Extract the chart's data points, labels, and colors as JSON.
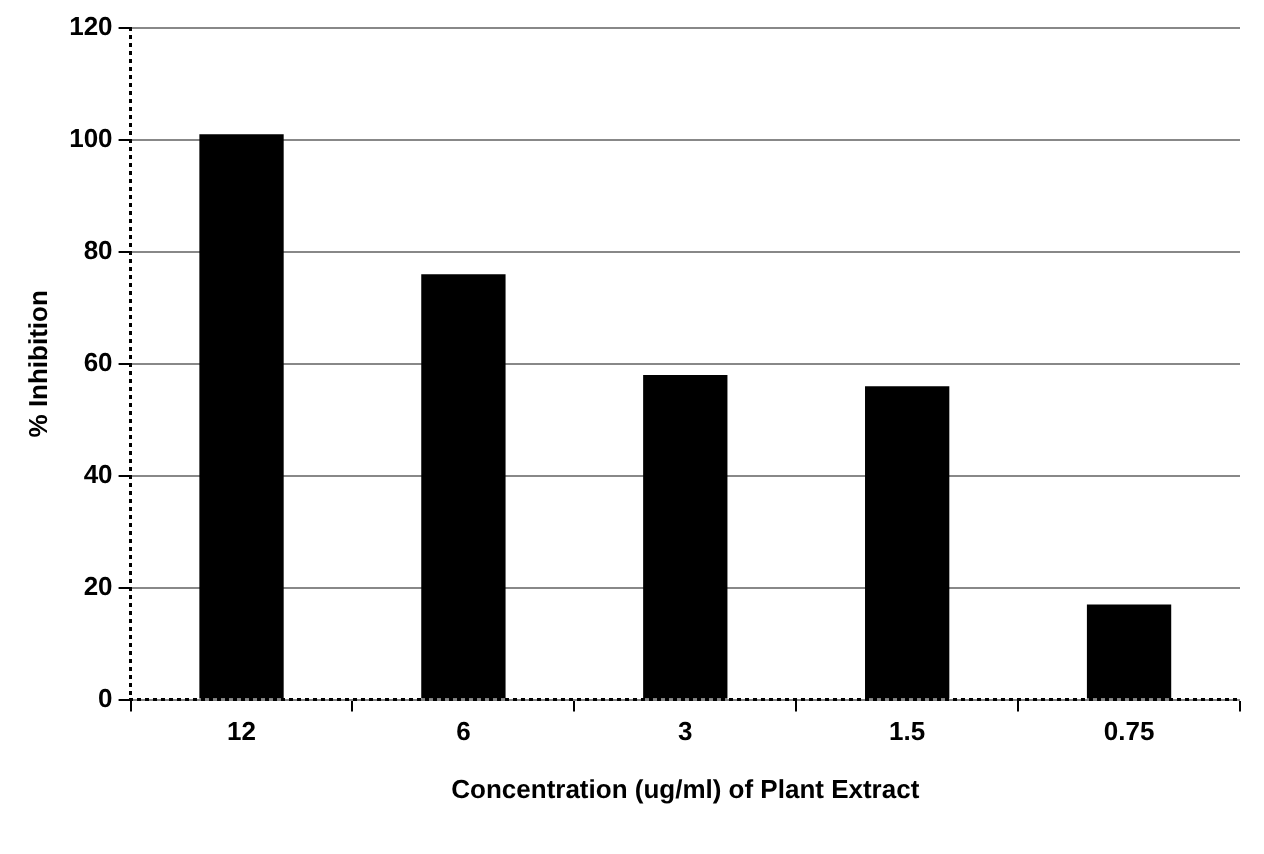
{
  "chart_data": {
    "type": "bar",
    "xlabel": "Concentration (ug/ml) of Plant Extract",
    "ylabel": "% Inhibition",
    "categories": [
      "12",
      "6",
      "3",
      "1.5",
      "0.75"
    ],
    "values": [
      101,
      76,
      58,
      56,
      17
    ],
    "color": "#000000",
    "ylim": [
      0,
      120
    ],
    "yticks": [
      0,
      20,
      40,
      60,
      80,
      100,
      120
    ],
    "grid": "y",
    "legend": false
  }
}
